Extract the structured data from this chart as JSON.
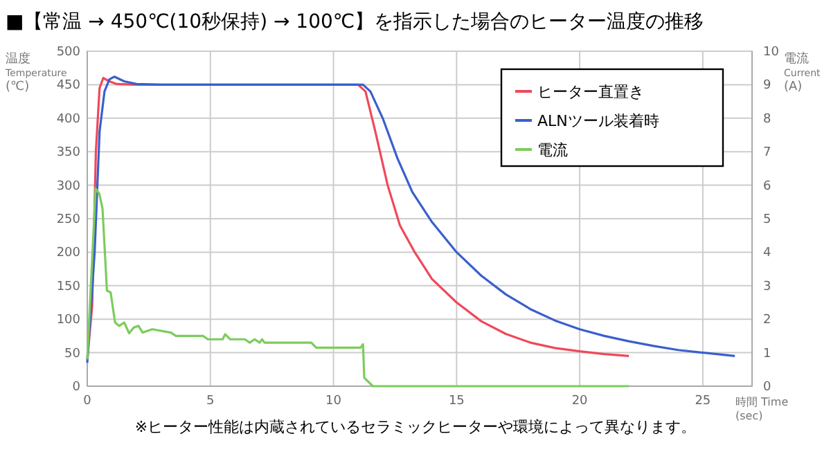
{
  "chart_data": {
    "type": "line",
    "title": "■【常温 → 450℃(10秒保持) → 100℃】を指示した場合のヒーター温度の推移",
    "xlabel": "時間 Time\n(sec)",
    "ylabel": "温度\nTemperature\n(℃)",
    "y2label": "電流\nCurrent\n(A)",
    "annotations": [
      "※ヒーター性能は内蔵されているセラミックヒーターや環境によって異なります。"
    ],
    "xlim": [
      0,
      27
    ],
    "xticks": [
      0,
      5,
      10,
      15,
      20,
      25
    ],
    "ylim": [
      0,
      500
    ],
    "yticks": [
      0,
      50,
      100,
      150,
      200,
      250,
      300,
      350,
      400,
      450,
      500
    ],
    "y2lim": [
      0,
      10
    ],
    "y2ticks": [
      0,
      1,
      2,
      3,
      4,
      5,
      6,
      7,
      8,
      9,
      10
    ],
    "grid": true,
    "legend": "top right",
    "line_style": "solid",
    "marker": "none",
    "series": [
      {
        "name": "ヒーター直置き",
        "color": "#f0485a",
        "x": [
          0,
          0.2,
          0.35,
          0.5,
          0.65,
          0.9,
          1.2,
          2,
          11,
          11.3,
          11.7,
          12.2,
          12.7,
          13.3,
          14,
          15,
          16,
          17,
          18,
          19,
          20,
          21,
          22
        ],
        "values": [
          40,
          120,
          350,
          445,
          460,
          455,
          451,
          450,
          450,
          440,
          380,
          300,
          240,
          200,
          160,
          125,
          97,
          78,
          65,
          57,
          52,
          48,
          45
        ]
      },
      {
        "name": "ALNツール装着時",
        "color": "#3a5fcd",
        "x": [
          0,
          0.3,
          0.5,
          0.7,
          0.9,
          1.1,
          1.5,
          2,
          3,
          11.2,
          11.5,
          12,
          12.6,
          13.2,
          14,
          15,
          16,
          17,
          18,
          19,
          20,
          21,
          22,
          23,
          24,
          25,
          26.3
        ],
        "values": [
          35,
          200,
          380,
          440,
          458,
          462,
          455,
          451,
          450,
          450,
          440,
          400,
          340,
          290,
          245,
          200,
          165,
          137,
          115,
          98,
          85,
          75,
          67,
          60,
          54,
          50,
          45
        ]
      },
      {
        "name": "電流",
        "color": "#7ccc5c",
        "axis": "y2",
        "x": [
          0,
          0.34,
          0.49,
          0.62,
          0.8,
          0.95,
          1.13,
          1.3,
          1.5,
          1.7,
          1.89,
          2.08,
          2.25,
          2.64,
          3.4,
          3.6,
          4.7,
          4.9,
          5.5,
          5.6,
          5.8,
          6.4,
          6.6,
          6.8,
          7.0,
          7.1,
          7.2,
          9.1,
          9.3,
          11.1,
          11.2,
          11.25,
          11.6,
          22
        ],
        "values": [
          0.8,
          5.9,
          5.75,
          5.3,
          2.85,
          2.8,
          1.9,
          1.8,
          1.9,
          1.58,
          1.75,
          1.8,
          1.6,
          1.7,
          1.6,
          1.5,
          1.5,
          1.4,
          1.4,
          1.55,
          1.4,
          1.4,
          1.3,
          1.4,
          1.3,
          1.4,
          1.3,
          1.3,
          1.15,
          1.15,
          1.25,
          0.25,
          0,
          0
        ]
      }
    ]
  }
}
